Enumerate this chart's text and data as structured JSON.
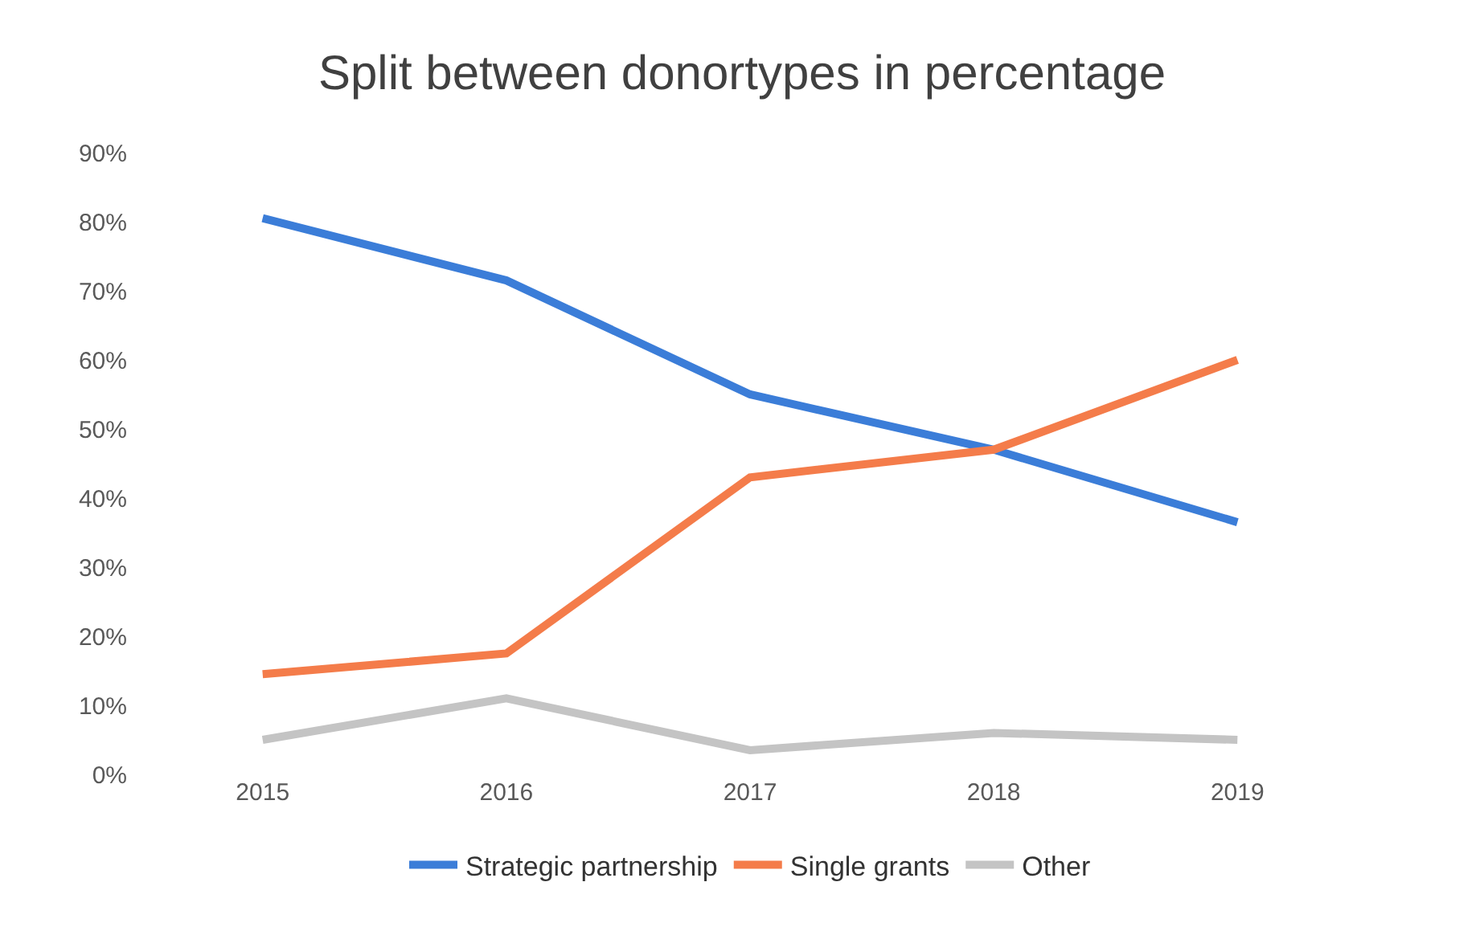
{
  "chart_data": {
    "type": "line",
    "title": "Split between donortypes in percentage",
    "categories": [
      "2015",
      "2016",
      "2017",
      "2018",
      "2019"
    ],
    "series": [
      {
        "name": "Strategic partnership",
        "color": "#3b7dd8",
        "values": [
          80.5,
          71.5,
          55,
          47,
          36.5
        ]
      },
      {
        "name": "Single grants",
        "color": "#f47c4a",
        "values": [
          14.5,
          17.5,
          43,
          47,
          60
        ]
      },
      {
        "name": "Other",
        "color": "#c4c4c4",
        "values": [
          5,
          11,
          3.5,
          6,
          5
        ]
      }
    ],
    "ylim": [
      0,
      90
    ],
    "yticks": [
      {
        "value": 0,
        "label": "0%"
      },
      {
        "value": 10,
        "label": "10%"
      },
      {
        "value": 20,
        "label": "20%"
      },
      {
        "value": 30,
        "label": "30%"
      },
      {
        "value": 40,
        "label": "40%"
      },
      {
        "value": 50,
        "label": "50%"
      },
      {
        "value": 60,
        "label": "60%"
      },
      {
        "value": 70,
        "label": "70%"
      },
      {
        "value": 80,
        "label": "80%"
      },
      {
        "value": 90,
        "label": "90%"
      }
    ],
    "legend": "bottom",
    "marker": "none",
    "line_style": "solid"
  }
}
